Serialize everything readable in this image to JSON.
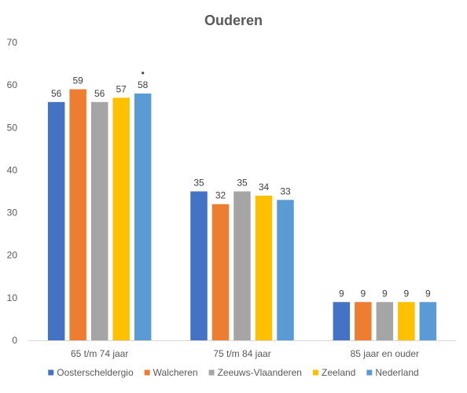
{
  "chart_data": {
    "type": "bar",
    "title": "Ouderen",
    "categories": [
      "65 t/m 74 jaar",
      "75 t/m 84 jaar",
      "85 jaar en ouder"
    ],
    "series": [
      {
        "name": "Oosterscheldergio",
        "color": "#4472C4",
        "values": [
          56,
          35,
          9
        ]
      },
      {
        "name": "Walcheren",
        "color": "#ED7D31",
        "values": [
          59,
          32,
          9
        ]
      },
      {
        "name": "Zeeuws-Vlaanderen",
        "color": "#A5A5A5",
        "values": [
          56,
          35,
          9
        ]
      },
      {
        "name": "Zeeland",
        "color": "#FFC000",
        "values": [
          57,
          34,
          9
        ]
      },
      {
        "name": "Nederland",
        "color": "#5B9BD5",
        "values": [
          58,
          33,
          9
        ]
      }
    ],
    "data_labels": [
      [
        "56",
        "35",
        "9"
      ],
      [
        "59",
        "32",
        "9"
      ],
      [
        "56",
        "35",
        "9"
      ],
      [
        "57",
        "34",
        "9"
      ],
      [
        "58",
        "33",
        "9"
      ]
    ],
    "ylim": [
      0,
      70
    ],
    "yticks": [
      "0",
      "10",
      "20",
      "30",
      "40",
      "50",
      "60",
      "70"
    ],
    "grid": false,
    "legend_position": "bottom",
    "significance_marker": {
      "category_index": 0,
      "series_index": 4,
      "symbol": "•"
    }
  }
}
